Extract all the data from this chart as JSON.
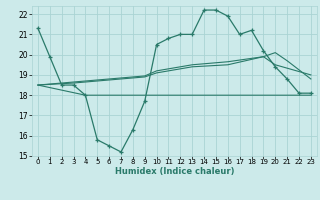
{
  "xlabel": "Humidex (Indice chaleur)",
  "xlim": [
    -0.5,
    23.5
  ],
  "ylim": [
    15,
    22.4
  ],
  "yticks": [
    15,
    16,
    17,
    18,
    19,
    20,
    21,
    22
  ],
  "xticks": [
    0,
    1,
    2,
    3,
    4,
    5,
    6,
    7,
    8,
    9,
    10,
    11,
    12,
    13,
    14,
    15,
    16,
    17,
    18,
    19,
    20,
    21,
    22,
    23
  ],
  "bg_color": "#cceaea",
  "grid_color": "#aad4d4",
  "line_color": "#2a7a6a",
  "line1_x": [
    0,
    1,
    2,
    3,
    4,
    5,
    6,
    7,
    8,
    9,
    10,
    11,
    12,
    13,
    14,
    15,
    16,
    17,
    18,
    19,
    20,
    21,
    22,
    23
  ],
  "line1_y": [
    21.3,
    19.9,
    18.5,
    18.5,
    18.0,
    15.8,
    15.5,
    15.2,
    16.3,
    17.7,
    20.5,
    20.8,
    21.0,
    21.0,
    22.2,
    22.2,
    21.9,
    21.0,
    21.2,
    20.2,
    19.4,
    18.8,
    18.1,
    18.1
  ],
  "line2_x": [
    0,
    4,
    9,
    15,
    16,
    23
  ],
  "line2_y": [
    18.5,
    18.0,
    18.0,
    18.0,
    18.0,
    18.0
  ],
  "line3_x": [
    0,
    3,
    9,
    10,
    13,
    16,
    19,
    20,
    21,
    23
  ],
  "line3_y": [
    18.5,
    18.6,
    18.9,
    19.1,
    19.4,
    19.5,
    19.9,
    20.1,
    19.7,
    18.8
  ],
  "line4_x": [
    0,
    3,
    9,
    10,
    13,
    16,
    19,
    20,
    23
  ],
  "line4_y": [
    18.5,
    18.65,
    18.95,
    19.2,
    19.5,
    19.65,
    19.9,
    19.5,
    19.0
  ]
}
